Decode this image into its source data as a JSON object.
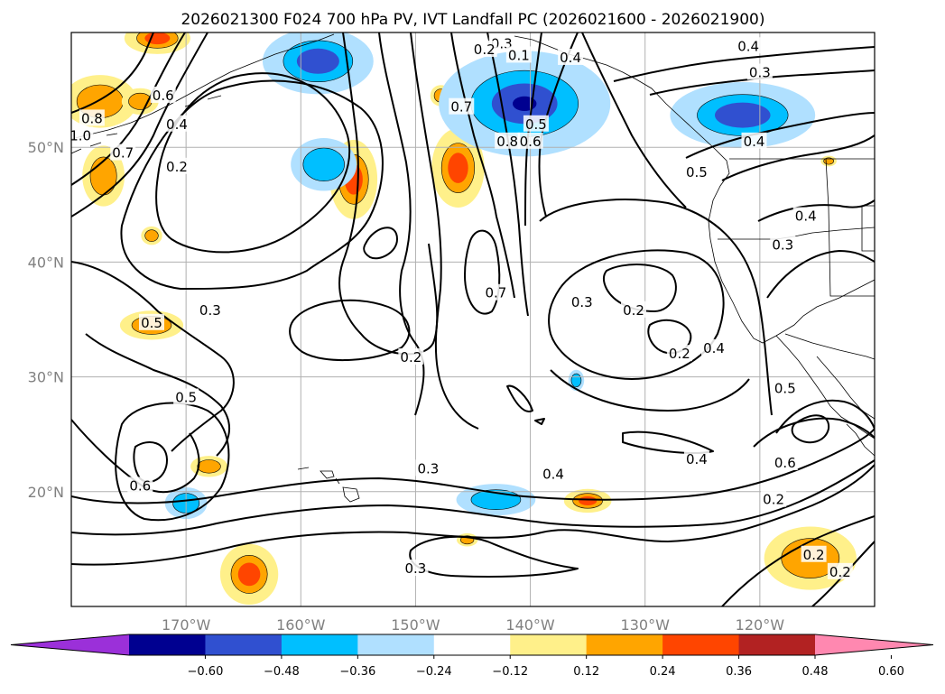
{
  "title": "2026021300 F024 700 hPa PV, IVT Landfall PC (2026021600 - 2026021900)",
  "map": {
    "lon_range": [
      -180,
      -110
    ],
    "lat_range": [
      10,
      60
    ],
    "lat_ticks": [
      {
        "value": 50,
        "label": "50°N"
      },
      {
        "value": 40,
        "label": "40°N"
      },
      {
        "value": 30,
        "label": "30°N"
      },
      {
        "value": 20,
        "label": "20°N"
      }
    ],
    "lon_ticks": [
      {
        "value": -170,
        "label": "170°W"
      },
      {
        "value": -160,
        "label": "160°W"
      },
      {
        "value": -150,
        "label": "150°W"
      },
      {
        "value": -140,
        "label": "140°W"
      },
      {
        "value": -130,
        "label": "130°W"
      },
      {
        "value": -120,
        "label": "120°W"
      }
    ],
    "gridlines": true
  },
  "colorbar": {
    "extend": "both",
    "colors": [
      "#9b30d9",
      "#000090",
      "#3050d0",
      "#00bfff",
      "#b0e0ff",
      "#ffffff",
      "#fff08a",
      "#ffa500",
      "#ff4500",
      "#b22222",
      "#ff88b0"
    ],
    "labels": [
      "−0.60",
      "−0.48",
      "−0.36",
      "−0.24",
      "−0.12",
      "0.12",
      "0.24",
      "0.36",
      "0.48",
      "0.60"
    ]
  },
  "contour_labels": [
    {
      "text": "0.4",
      "lon": -136.5,
      "lat": 57.8
    },
    {
      "text": "0.3",
      "lon": -142.5,
      "lat": 59.0
    },
    {
      "text": "0.2",
      "lon": -144.0,
      "lat": 58.5
    },
    {
      "text": "0.1",
      "lon": -141.0,
      "lat": 58.0
    },
    {
      "text": "0.3",
      "lon": -120.0,
      "lat": 56.5
    },
    {
      "text": "0.4",
      "lon": -121.0,
      "lat": 58.8
    },
    {
      "text": "0.4",
      "lon": -120.5,
      "lat": 50.5
    },
    {
      "text": "0.5",
      "lon": -125.5,
      "lat": 47.8
    },
    {
      "text": "0.4",
      "lon": -116.0,
      "lat": 44.0
    },
    {
      "text": "0.3",
      "lon": -118.0,
      "lat": 41.5
    },
    {
      "text": "0.7",
      "lon": -146.0,
      "lat": 53.5
    },
    {
      "text": "0.8",
      "lon": -142.0,
      "lat": 50.5
    },
    {
      "text": "0.6",
      "lon": -140.0,
      "lat": 50.5
    },
    {
      "text": "0.5",
      "lon": -139.5,
      "lat": 52.0
    },
    {
      "text": "1.0",
      "lon": -179.2,
      "lat": 51.0
    },
    {
      "text": "0.8",
      "lon": -178.2,
      "lat": 52.5
    },
    {
      "text": "0.7",
      "lon": -175.5,
      "lat": 49.5
    },
    {
      "text": "0.6",
      "lon": -172.0,
      "lat": 54.5
    },
    {
      "text": "0.4",
      "lon": -170.8,
      "lat": 52.0
    },
    {
      "text": "0.2",
      "lon": -170.8,
      "lat": 48.3
    },
    {
      "text": "0.7",
      "lon": -143.0,
      "lat": 37.3
    },
    {
      "text": "0.3",
      "lon": -135.5,
      "lat": 36.5
    },
    {
      "text": "0.2",
      "lon": -131.0,
      "lat": 35.8
    },
    {
      "text": "0.2",
      "lon": -127.0,
      "lat": 32.0
    },
    {
      "text": "0.4",
      "lon": -124.0,
      "lat": 32.5
    },
    {
      "text": "0.5",
      "lon": -173.0,
      "lat": 34.7
    },
    {
      "text": "0.3",
      "lon": -167.9,
      "lat": 35.8
    },
    {
      "text": "0.2",
      "lon": -150.4,
      "lat": 31.7
    },
    {
      "text": "0.5",
      "lon": -170.0,
      "lat": 28.2
    },
    {
      "text": "0.5",
      "lon": -117.8,
      "lat": 29.0
    },
    {
      "text": "0.6",
      "lon": -174.0,
      "lat": 20.5
    },
    {
      "text": "0.3",
      "lon": -148.9,
      "lat": 22.0
    },
    {
      "text": "0.4",
      "lon": -138.0,
      "lat": 21.5
    },
    {
      "text": "0.4",
      "lon": -125.5,
      "lat": 22.8
    },
    {
      "text": "0.6",
      "lon": -117.8,
      "lat": 22.5
    },
    {
      "text": "0.2",
      "lon": -118.8,
      "lat": 19.3
    },
    {
      "text": "0.3",
      "lon": -150.0,
      "lat": 13.3
    },
    {
      "text": "0.2",
      "lon": -115.3,
      "lat": 14.5
    },
    {
      "text": "0.2",
      "lon": -113.0,
      "lat": 13.0
    }
  ],
  "positive_pv_blobs": [
    {
      "lon": -172.5,
      "lat": 59.5,
      "rx": 2.5,
      "ry": 1.2,
      "level": 0.36
    },
    {
      "lon": -177.5,
      "lat": 54.0,
      "rx": 2.8,
      "ry": 2.0,
      "level": 0.24
    },
    {
      "lon": -174.0,
      "lat": 54.0,
      "rx": 1.4,
      "ry": 1.0,
      "level": 0.24
    },
    {
      "lon": -177.2,
      "lat": 47.5,
      "rx": 1.6,
      "ry": 2.3,
      "level": 0.24
    },
    {
      "lon": -173.0,
      "lat": 42.3,
      "rx": 0.8,
      "ry": 0.7,
      "level": 0.24
    },
    {
      "lon": -173.0,
      "lat": 34.5,
      "rx": 2.4,
      "ry": 1.1,
      "level": 0.24
    },
    {
      "lon": -155.4,
      "lat": 47.2,
      "rx": 1.8,
      "ry": 3.0,
      "level": 0.36
    },
    {
      "lon": -146.3,
      "lat": 48.2,
      "rx": 2.0,
      "ry": 3.0,
      "level": 0.36
    },
    {
      "lon": -147.8,
      "lat": 54.5,
      "rx": 0.8,
      "ry": 0.8,
      "level": 0.24
    },
    {
      "lon": -168.0,
      "lat": 22.2,
      "rx": 1.4,
      "ry": 0.8,
      "level": 0.24
    },
    {
      "lon": -164.5,
      "lat": 12.8,
      "rx": 2.2,
      "ry": 2.3,
      "level": 0.36
    },
    {
      "lon": -135.0,
      "lat": 19.2,
      "rx": 1.8,
      "ry": 0.9,
      "level": 0.36
    },
    {
      "lon": -145.5,
      "lat": 15.8,
      "rx": 0.8,
      "ry": 0.5,
      "level": 0.24
    },
    {
      "lon": -115.6,
      "lat": 14.2,
      "rx": 3.5,
      "ry": 2.4,
      "level": 0.24
    },
    {
      "lon": -114.0,
      "lat": 48.8,
      "rx": 0.6,
      "ry": 0.4,
      "level": 0.24
    }
  ],
  "negative_pv_blobs": [
    {
      "lon": -158.5,
      "lat": 57.5,
      "rx": 4.2,
      "ry": 2.5,
      "level": -0.36
    },
    {
      "lon": -158.0,
      "lat": 48.5,
      "rx": 2.5,
      "ry": 2.0,
      "level": -0.24
    },
    {
      "lon": -140.5,
      "lat": 53.8,
      "rx": 6.5,
      "ry": 4.0,
      "level": -0.48
    },
    {
      "lon": -121.5,
      "lat": 52.8,
      "rx": 5.5,
      "ry": 2.5,
      "level": -0.36
    },
    {
      "lon": -170.0,
      "lat": 19.0,
      "rx": 1.6,
      "ry": 1.2,
      "level": -0.24
    },
    {
      "lon": -143.0,
      "lat": 19.3,
      "rx": 3.0,
      "ry": 1.2,
      "level": -0.24
    },
    {
      "lon": -136.0,
      "lat": 29.7,
      "rx": 0.6,
      "ry": 0.8,
      "level": -0.24
    }
  ]
}
